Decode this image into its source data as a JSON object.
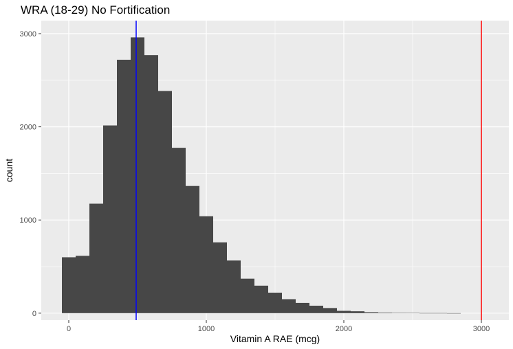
{
  "chart_data": {
    "type": "bar",
    "title": "WRA (18-29) No Fortification",
    "xlabel": "Vitamin A RAE (mcg)",
    "ylabel": "count",
    "xlim": [
      -200,
      3200
    ],
    "ylim": [
      -75,
      3140
    ],
    "x_ticks": [
      0,
      1000,
      2000,
      3000
    ],
    "x_tick_labels": [
      "0",
      "1000",
      "2000",
      "3000"
    ],
    "y_ticks": [
      0,
      1000,
      2000,
      3000
    ],
    "y_tick_labels": [
      "0",
      "1000",
      "2000",
      "3000"
    ],
    "grid": true,
    "bin_width": 100,
    "bins": [
      {
        "x": 0,
        "count": 600
      },
      {
        "x": 100,
        "count": 615
      },
      {
        "x": 200,
        "count": 1175
      },
      {
        "x": 300,
        "count": 2015
      },
      {
        "x": 400,
        "count": 2720
      },
      {
        "x": 500,
        "count": 2960
      },
      {
        "x": 600,
        "count": 2770
      },
      {
        "x": 700,
        "count": 2385
      },
      {
        "x": 800,
        "count": 1775
      },
      {
        "x": 900,
        "count": 1365
      },
      {
        "x": 1000,
        "count": 1040
      },
      {
        "x": 1100,
        "count": 760
      },
      {
        "x": 1200,
        "count": 565
      },
      {
        "x": 1300,
        "count": 370
      },
      {
        "x": 1400,
        "count": 295
      },
      {
        "x": 1500,
        "count": 220
      },
      {
        "x": 1600,
        "count": 150
      },
      {
        "x": 1700,
        "count": 110
      },
      {
        "x": 1800,
        "count": 80
      },
      {
        "x": 1900,
        "count": 55
      },
      {
        "x": 2000,
        "count": 25
      },
      {
        "x": 2100,
        "count": 20
      },
      {
        "x": 2200,
        "count": 10
      },
      {
        "x": 2300,
        "count": 6
      },
      {
        "x": 2400,
        "count": 4
      },
      {
        "x": 2500,
        "count": 3
      },
      {
        "x": 2600,
        "count": 1
      },
      {
        "x": 2700,
        "count": 1
      },
      {
        "x": 2800,
        "count": 0
      }
    ],
    "reference_lines": [
      {
        "x": 490,
        "color": "#0000ff"
      },
      {
        "x": 3000,
        "color": "#ff0000"
      }
    ],
    "colors": {
      "panel_background": "#ebebeb",
      "grid": "#ffffff",
      "bar_fill": "#474747",
      "tick_label": "#4d4d4d",
      "tick_mark": "#333333"
    }
  }
}
